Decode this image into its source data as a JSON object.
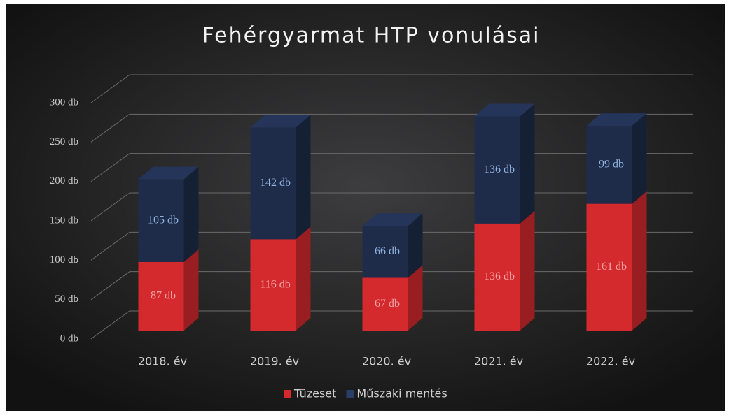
{
  "chart_data": {
    "type": "bar3d_stacked",
    "title": "Fehérgyarmat HTP vonulásai",
    "categories": [
      "2018. év",
      "2019. év",
      "2020. év",
      "2021. év",
      "2022. év"
    ],
    "series": [
      {
        "name": "Tüzeset",
        "color": "#d42a2e",
        "values": [
          87,
          116,
          67,
          136,
          161
        ],
        "value_labels": [
          "87 db",
          "116 db",
          "67 db",
          "136 db",
          "161 db"
        ]
      },
      {
        "name": "Műszaki mentés",
        "color": "#1e2c4a",
        "values": [
          105,
          142,
          66,
          136,
          99
        ],
        "value_labels": [
          "105 db",
          "142 db",
          "66 db",
          "136 db",
          "99 db"
        ]
      }
    ],
    "ylim": [
      0,
      300
    ],
    "yticks": [
      {
        "value": 0,
        "label": "0 db"
      },
      {
        "value": 50,
        "label": "50 db"
      },
      {
        "value": 100,
        "label": "100 db"
      },
      {
        "value": 150,
        "label": "150 db"
      },
      {
        "value": 200,
        "label": "200 db"
      },
      {
        "value": 250,
        "label": "250 db"
      },
      {
        "value": 300,
        "label": "300 db"
      }
    ],
    "grid": true,
    "legend": "bottom"
  }
}
